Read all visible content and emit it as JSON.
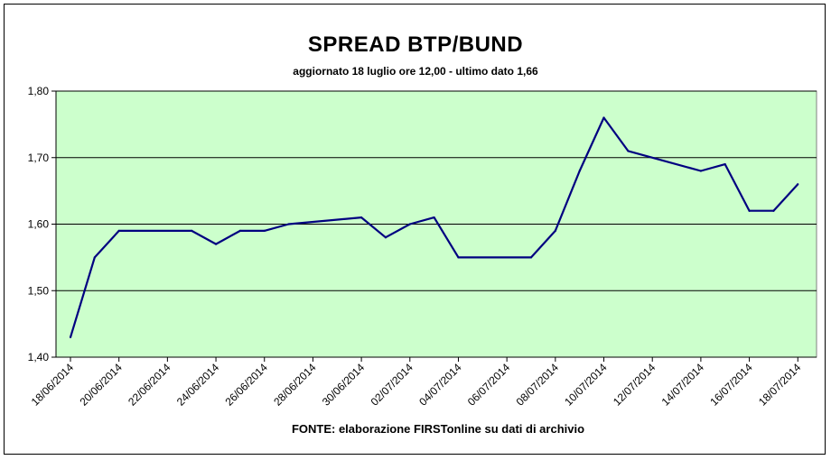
{
  "chart_data": {
    "type": "line",
    "title": "SPREAD BTP/BUND",
    "subtitle": "aggiornato 18 luglio ore 12,00 - ultimo dato 1,66",
    "source": "FONTE: elaborazione FIRSTonline su dati di archivio",
    "xlabel": "",
    "ylabel": "",
    "ylim": [
      1.4,
      1.8
    ],
    "yticks": [
      "1,40",
      "1,50",
      "1,60",
      "1,70",
      "1,80"
    ],
    "ytick_values": [
      1.4,
      1.5,
      1.6,
      1.7,
      1.8
    ],
    "xtick_labels": [
      "18/06/2014",
      "20/06/2014",
      "22/06/2014",
      "24/06/2014",
      "26/06/2014",
      "28/06/2014",
      "30/06/2014",
      "02/07/2014",
      "04/07/2014",
      "06/07/2014",
      "08/07/2014",
      "10/07/2014",
      "12/07/2014",
      "14/07/2014",
      "16/07/2014",
      "18/07/2014"
    ],
    "grid": true,
    "background_color": "#CCFFCC",
    "line_color": "#000080",
    "series": [
      {
        "x": [
          "18/06/2014",
          "19/06/2014",
          "20/06/2014",
          "23/06/2014",
          "24/06/2014",
          "25/06/2014",
          "26/06/2014",
          "27/06/2014",
          "30/06/2014",
          "01/07/2014",
          "02/07/2014",
          "03/07/2014",
          "04/07/2014",
          "07/07/2014",
          "08/07/2014",
          "09/07/2014",
          "10/07/2014",
          "11/07/2014",
          "14/07/2014",
          "15/07/2014",
          "16/07/2014",
          "17/07/2014",
          "18/07/2014"
        ],
        "values": [
          1.43,
          1.55,
          1.59,
          1.59,
          1.57,
          1.59,
          1.59,
          1.6,
          1.61,
          1.58,
          1.6,
          1.61,
          1.55,
          1.55,
          1.59,
          1.68,
          1.76,
          1.71,
          1.68,
          1.69,
          1.62,
          1.62,
          1.66
        ]
      }
    ]
  }
}
